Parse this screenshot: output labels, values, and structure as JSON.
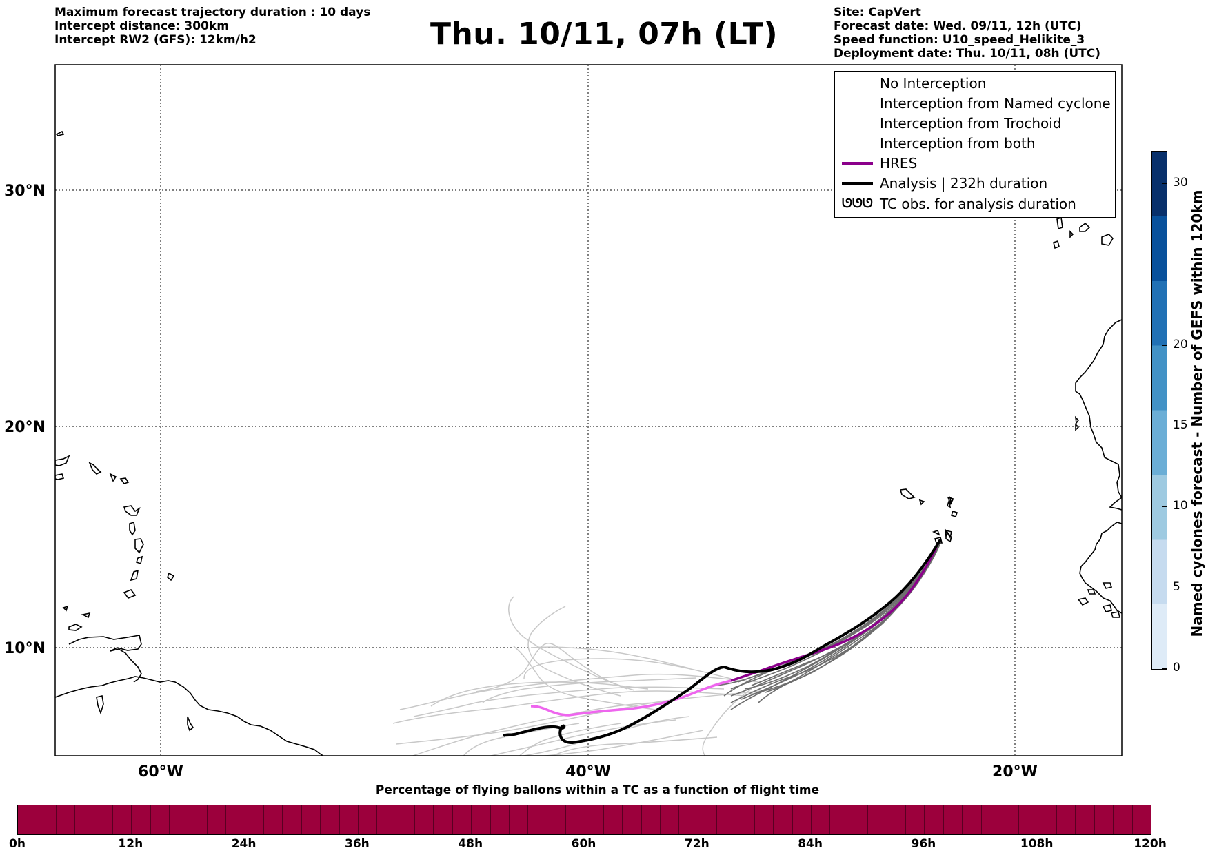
{
  "header_left": [
    "Maximum forecast trajectory duration : 10 days",
    "Intercept distance: 300km",
    "Intercept RW2 (GFS):  12km/h2"
  ],
  "title": "Thu. 10/11, 07h (LT)",
  "header_right": [
    "Site: CapVert",
    "Forecast date: Wed. 09/11, 12h (UTC)",
    "Speed function: U10_speed_Helikite_3",
    "Deployment date: Thu. 10/11, 08h (UTC)"
  ],
  "map": {
    "lat_labels": [
      "30°N",
      "20°N",
      "10°N"
    ],
    "lon_labels": [
      "60°W",
      "40°W",
      "20°W"
    ],
    "extent": {
      "lon_min": -65,
      "lon_max": -15,
      "lat_min": 5.4,
      "lat_max": 35.3
    }
  },
  "legend": [
    {
      "label": "No Interception",
      "color": "#808080"
    },
    {
      "label": "Interception from Named cyclone",
      "color": "#ff7f50"
    },
    {
      "label": "Interception from Trochoid",
      "color": "#9b8b3a"
    },
    {
      "label": "Interception from both",
      "color": "#2ca02c"
    },
    {
      "label": "HRES",
      "color": "#8b008b"
    },
    {
      "label": "Analysis | 232h duration",
      "color": "#000000"
    },
    {
      "label": "TC obs. for analysis duration",
      "symbol": "cyclone-symbols",
      "glyph": "ᘎᘎᘎ"
    }
  ],
  "colorbar_vertical": {
    "label": "Named cyclones forecast - Number of GEFS within 120km",
    "ticks": [
      "0",
      "5",
      "10",
      "15",
      "20",
      "30"
    ],
    "min": 0,
    "max": 32,
    "colors": [
      "#deebf7",
      "#c6dbef",
      "#9ecae1",
      "#6baed6",
      "#4292c6",
      "#2171b5",
      "#08519c",
      "#08306b"
    ]
  },
  "colorbar_horizontal": {
    "title": "Percentage of flying ballons within a TC as a function of flight time",
    "ticks": [
      "0h",
      "12h",
      "24h",
      "36h",
      "48h",
      "60h",
      "72h",
      "84h",
      "96h",
      "108h",
      "120h"
    ],
    "color": "#9c003c"
  }
}
